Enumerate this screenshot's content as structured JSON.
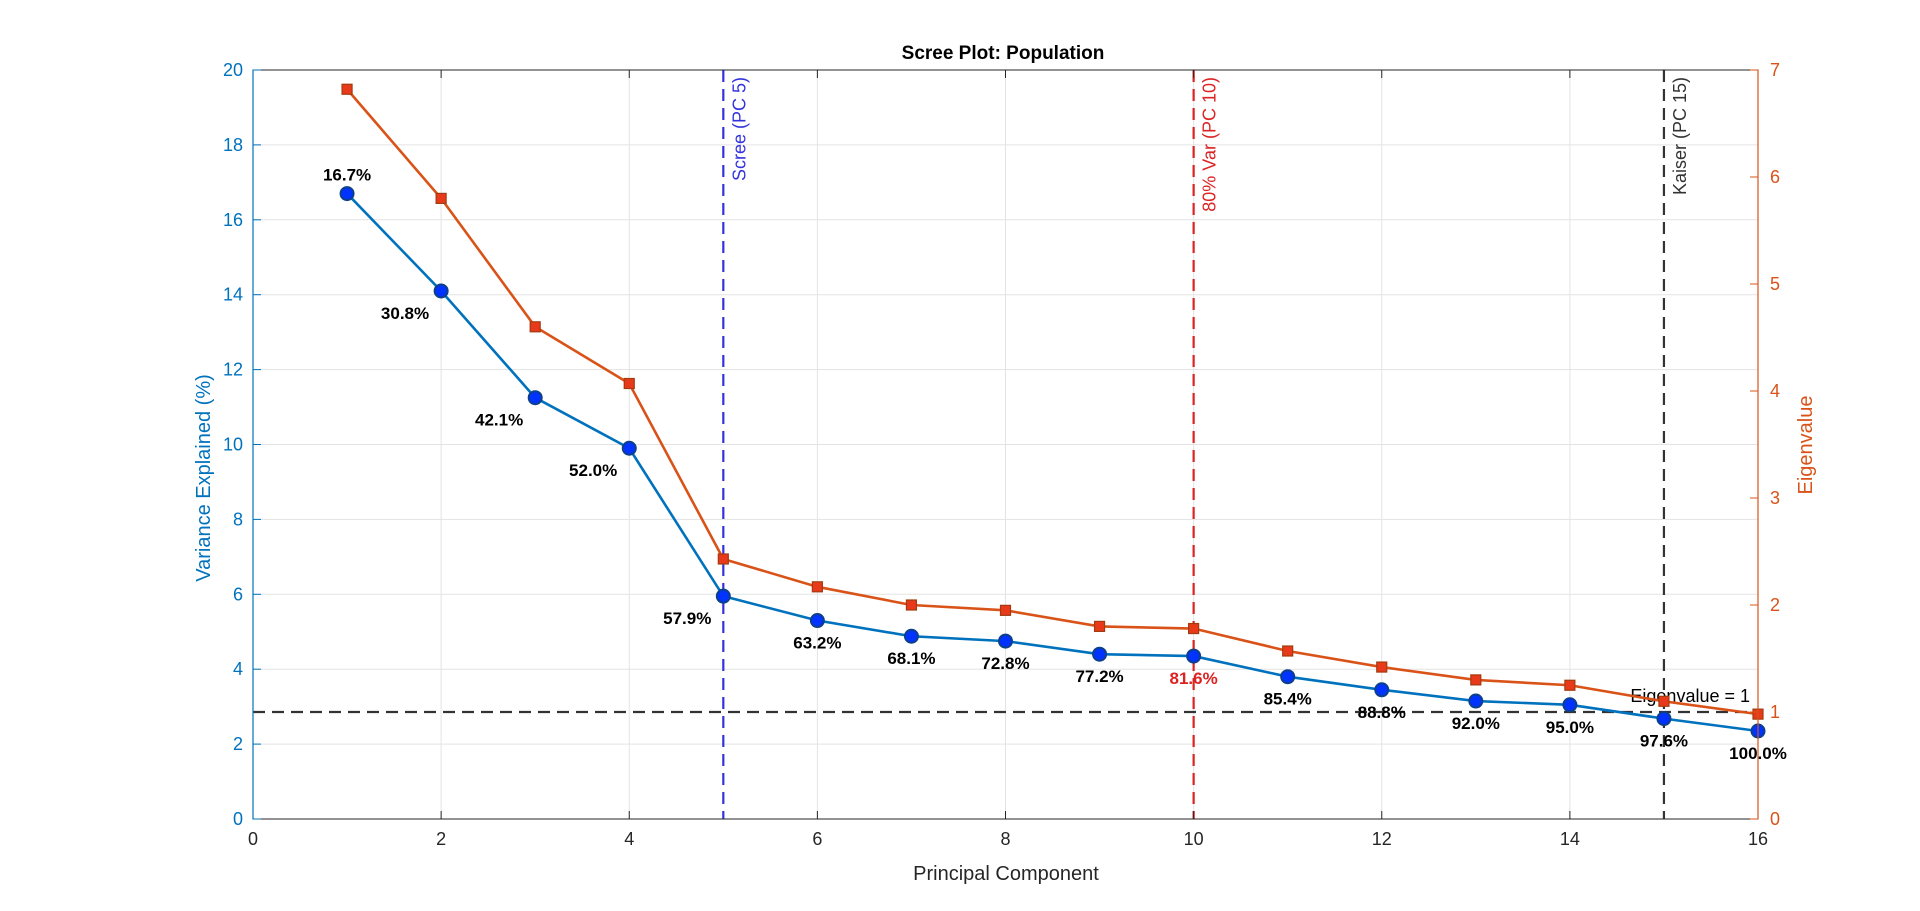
{
  "chart_data": {
    "type": "line",
    "title": "Scree Plot: Population",
    "xlabel": "Principal Component",
    "ylabel_left": "Variance Explained (%)",
    "ylabel_right": "Eigenvalue",
    "xlim": [
      0,
      16
    ],
    "ylim_left": [
      0,
      20
    ],
    "ylim_right": [
      0,
      7
    ],
    "x_ticks": [
      0,
      2,
      4,
      6,
      8,
      10,
      12,
      14,
      16
    ],
    "y_left_ticks": [
      0,
      2,
      4,
      6,
      8,
      10,
      12,
      14,
      16,
      18,
      20
    ],
    "y_right_ticks": [
      0,
      1,
      2,
      3,
      4,
      5,
      6,
      7
    ],
    "grid": true,
    "colors": {
      "variance": "#0072BD",
      "variance_marker": "#0033ff",
      "eigen": "#D95319",
      "eigen_marker": "#e83a1a",
      "scree_line": "#3333dd",
      "var80_line": "#dd2222",
      "kaiser_line": "#333333"
    },
    "x": [
      1,
      2,
      3,
      4,
      5,
      6,
      7,
      8,
      9,
      10,
      11,
      12,
      13,
      14,
      15,
      16
    ],
    "series": [
      {
        "axis": "left",
        "values": [
          16.7,
          14.1,
          11.25,
          9.9,
          5.95,
          5.3,
          4.88,
          4.75,
          4.4,
          4.35,
          3.8,
          3.45,
          3.15,
          3.05,
          2.68,
          2.35
        ],
        "labels": [
          "16.7%",
          "30.8%",
          "42.1%",
          "52.0%",
          "57.9%",
          "63.2%",
          "68.1%",
          "72.8%",
          "77.2%",
          "81.6%",
          "85.4%",
          "88.8%",
          "92.0%",
          "95.0%",
          "97.6%",
          "100.0%"
        ],
        "highlight_label_index": 9
      },
      {
        "axis": "right",
        "values": [
          6.82,
          5.8,
          4.6,
          4.07,
          2.43,
          2.17,
          2.0,
          1.95,
          1.8,
          1.78,
          1.57,
          1.42,
          1.3,
          1.25,
          1.1,
          0.98
        ]
      }
    ],
    "vlines": [
      {
        "x": 5,
        "label": "Scree (PC 5)",
        "color": "#3333dd"
      },
      {
        "x": 10,
        "label": "80% Var (PC 10)",
        "color": "#dd2222"
      },
      {
        "x": 15,
        "label": "Kaiser (PC 15)",
        "color": "#333333"
      }
    ],
    "hline": {
      "axis": "right",
      "y": 1,
      "label": "Eigenvalue = 1",
      "color": "#333333"
    }
  }
}
